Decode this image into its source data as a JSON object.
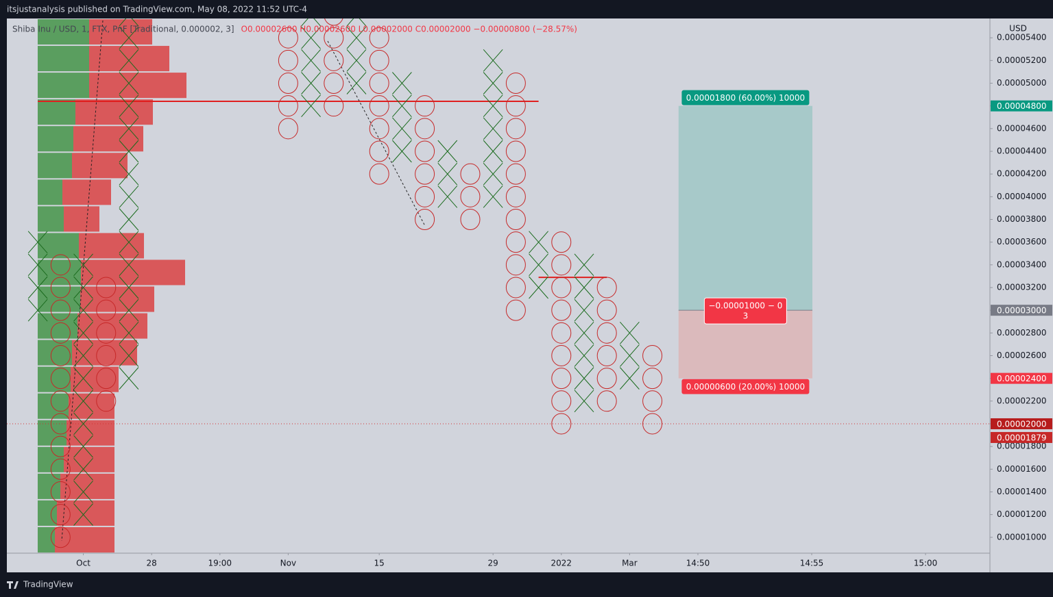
{
  "header": {
    "publisher": "itsjustanalysis published on TradingView.com, May 08, 2022 11:52 UTC-4",
    "symbol": "Shiba Inu / USD, 1, FTX, PnF [Traditional, 0.000002, 3]",
    "ohlc": "O0.00002600 H0.00002600 L0.00002000 C0.00002000 −0.00000800 (−28.57%)",
    "footer": "TradingView"
  },
  "chart_data": {
    "type": "pnf",
    "axis_label": "USD",
    "box_size": 2e-06,
    "ylim": [
      8.6e-06,
      5.57e-05
    ],
    "xlim": [
      -1.36,
      41.83
    ],
    "yticks": [
      {
        "value": 1e-05,
        "label": "0.00001000"
      },
      {
        "value": 1.2e-05,
        "label": "0.00001200"
      },
      {
        "value": 1.4e-05,
        "label": "0.00001400"
      },
      {
        "value": 1.6e-05,
        "label": "0.00001600"
      },
      {
        "value": 1.8e-05,
        "label": "0.00001800"
      },
      {
        "value": 2e-05,
        "label": "0.00002000"
      },
      {
        "value": 2.2e-05,
        "label": "0.00002200"
      },
      {
        "value": 2.4e-05,
        "label": "0.00002400"
      },
      {
        "value": 2.6e-05,
        "label": "0.00002600"
      },
      {
        "value": 2.8e-05,
        "label": "0.00002800"
      },
      {
        "value": 3e-05,
        "label": "0.00003000"
      },
      {
        "value": 3.2e-05,
        "label": "0.00003200"
      },
      {
        "value": 3.4e-05,
        "label": "0.00003400"
      },
      {
        "value": 3.6e-05,
        "label": "0.00003600"
      },
      {
        "value": 3.8e-05,
        "label": "0.00003800"
      },
      {
        "value": 4e-05,
        "label": "0.00004000"
      },
      {
        "value": 4.2e-05,
        "label": "0.00004200"
      },
      {
        "value": 4.4e-05,
        "label": "0.00004400"
      },
      {
        "value": 4.6e-05,
        "label": "0.00004600"
      },
      {
        "value": 4.8e-05,
        "label": "0.00004800"
      },
      {
        "value": 5e-05,
        "label": "0.00005000"
      },
      {
        "value": 5.2e-05,
        "label": "0.00005200"
      },
      {
        "value": 5.4e-05,
        "label": "0.00005400"
      }
    ],
    "xticks": [
      {
        "value": 2,
        "label": "Oct"
      },
      {
        "value": 5,
        "label": "28"
      },
      {
        "value": 8,
        "label": "19:00"
      },
      {
        "value": 11,
        "label": "Nov"
      },
      {
        "value": 15,
        "label": "15"
      },
      {
        "value": 20,
        "label": "29"
      },
      {
        "value": 23,
        "label": "2022"
      },
      {
        "value": 26,
        "label": "Mar"
      },
      {
        "value": 29,
        "label": "14:50"
      },
      {
        "value": 34,
        "label": "14:55"
      },
      {
        "value": 39,
        "label": "15:00"
      }
    ],
    "x_color": "#1b6b1e",
    "o_color": "#c62828",
    "columns": [
      {
        "x": 0,
        "type": "X",
        "low": 3e-05,
        "high": 3.6e-05
      },
      {
        "x": 1,
        "type": "O",
        "low": 1e-05,
        "high": 3.4e-05
      },
      {
        "x": 2,
        "type": "X",
        "low": 1.2e-05,
        "high": 3.4e-05
      },
      {
        "x": 3,
        "type": "O",
        "low": 2.2e-05,
        "high": 3.2e-05
      },
      {
        "x": 4,
        "type": "X",
        "low": 2.4e-05,
        "high": 5.6e-05
      },
      {
        "x": 11,
        "type": "O",
        "low": 4.6e-05,
        "high": 5.4e-05
      },
      {
        "x": 12,
        "type": "X",
        "low": 4.8e-05,
        "high": 5.6e-05
      },
      {
        "x": 13,
        "type": "O",
        "low": 4.8e-05,
        "high": 5.6e-05
      },
      {
        "x": 14,
        "type": "X",
        "low": 5e-05,
        "high": 5.6e-05
      },
      {
        "x": 15,
        "type": "O",
        "low": 4.2e-05,
        "high": 5.4e-05
      },
      {
        "x": 16,
        "type": "X",
        "low": 4.4e-05,
        "high": 5e-05
      },
      {
        "x": 17,
        "type": "O",
        "low": 3.8e-05,
        "high": 4.8e-05
      },
      {
        "x": 18,
        "type": "X",
        "low": 4e-05,
        "high": 4.4e-05
      },
      {
        "x": 19,
        "type": "O",
        "low": 3.8e-05,
        "high": 4.2e-05
      },
      {
        "x": 20,
        "type": "X",
        "low": 4e-05,
        "high": 5.2e-05
      },
      {
        "x": 21,
        "type": "O",
        "low": 3e-05,
        "high": 5e-05
      },
      {
        "x": 22,
        "type": "X",
        "low": 3.2e-05,
        "high": 3.6e-05
      },
      {
        "x": 23,
        "type": "O",
        "low": 2e-05,
        "high": 3.6e-05
      },
      {
        "x": 24,
        "type": "X",
        "low": 2.2e-05,
        "high": 3.4e-05
      },
      {
        "x": 25,
        "type": "O",
        "low": 2.2e-05,
        "high": 3.2e-05
      },
      {
        "x": 26,
        "type": "X",
        "low": 2.4e-05,
        "high": 2.8e-05
      },
      {
        "x": 27,
        "type": "O",
        "low": 2e-05,
        "high": 2.6e-05
      }
    ],
    "volume_profile": {
      "up_color": "#5a9e5f",
      "down_color": "#d9585a",
      "up": [
        75,
        75,
        75,
        55,
        52,
        50,
        36,
        38,
        60,
        63,
        62,
        58,
        50,
        48,
        45,
        42,
        38,
        33,
        28,
        25
      ],
      "down": [
        92,
        117,
        142,
        113,
        102,
        81,
        71,
        52,
        95,
        152,
        108,
        102,
        95,
        70,
        67,
        70,
        74,
        79,
        84,
        87
      ]
    },
    "hlines": [
      {
        "value": 4.84e-05,
        "from": 0,
        "to": 22
      },
      {
        "value": 3.29e-05,
        "from": 22,
        "to": 25
      }
    ],
    "last_price_line": 2e-05,
    "position": {
      "target": 4.8e-05,
      "entry": 3e-05,
      "stop": 2.4e-05,
      "from": 28,
      "to": 34,
      "target_label": "0.00001800 (60.00%) 10000",
      "stop_label": "0.00000600 (20.00%) 10000",
      "center_label": [
        "−0.00001000 − 0",
        "3"
      ]
    },
    "price_labels": [
      {
        "value": 4.8e-05,
        "label": "0.00004800",
        "color": "#089981"
      },
      {
        "value": 3e-05,
        "label": "0.00003000",
        "color": "#787b86"
      },
      {
        "value": 2.4e-05,
        "label": "0.00002400",
        "color": "#f23645"
      },
      {
        "value": 2e-05,
        "label": "0.00002000",
        "color": "#b71c1c"
      },
      {
        "value": 1.879e-05,
        "label": "0.00001879",
        "color": "#c62828"
      }
    ]
  }
}
